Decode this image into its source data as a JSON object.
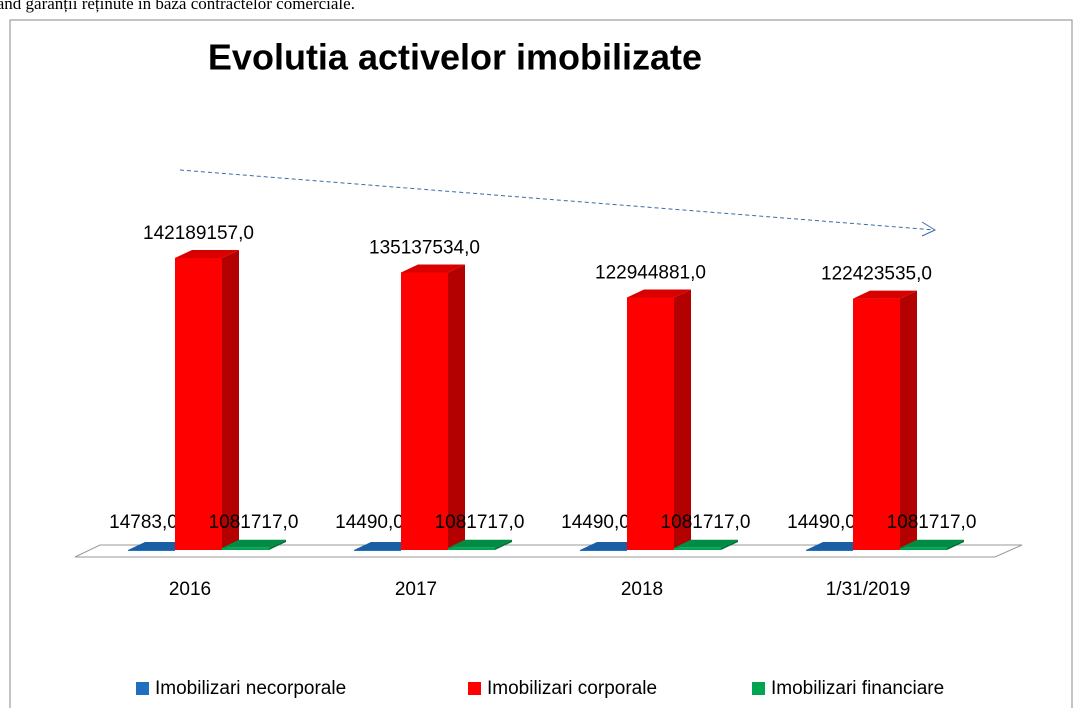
{
  "page_text": "tand garanții reținute în baza contractelor comerciale.",
  "chart_data": {
    "type": "bar3d",
    "title": "Evolutia activelor imobilizate",
    "categories": [
      "2016",
      "2017",
      "2018",
      "1/31/2019"
    ],
    "series": [
      {
        "name": "Imobilizari necorporale",
        "color": "#1f6fc1",
        "values": [
          14783,
          14490,
          14490,
          14490
        ],
        "value_labels": [
          "14783,0",
          "14490,0",
          "14490,0",
          "14490,0"
        ]
      },
      {
        "name": "Imobilizari corporale",
        "color": "#ff0000",
        "values": [
          142189157,
          135137534,
          122944881,
          122423535
        ],
        "value_labels": [
          "142189157,0",
          "135137534,0",
          "122944881,0",
          "122423535,0"
        ]
      },
      {
        "name": "Imobilizari financiare",
        "color": "#00a550",
        "values": [
          1081717,
          1081717,
          1081717,
          1081717
        ],
        "value_labels": [
          "1081717,0",
          "1081717,0",
          "1081717,0",
          "1081717,0"
        ]
      }
    ],
    "legend": "bottom"
  }
}
